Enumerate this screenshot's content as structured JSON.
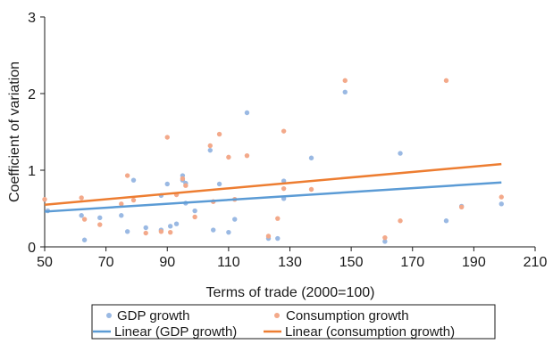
{
  "chart_data": {
    "type": "scatter",
    "xlabel": "Terms of trade (2000=100)",
    "ylabel": "Coefficient of variation",
    "xlim": [
      50,
      210
    ],
    "ylim": [
      0,
      3
    ],
    "x_ticks": [
      50,
      70,
      90,
      110,
      130,
      150,
      170,
      190,
      210
    ],
    "y_ticks": [
      0,
      1,
      2,
      3
    ],
    "grid": false,
    "legend_position": "bottom",
    "series": [
      {
        "name": "GDP growth",
        "kind": "scatter",
        "color": "#9ab9e3",
        "points": [
          [
            51,
            0.47
          ],
          [
            62,
            0.41
          ],
          [
            63,
            0.09
          ],
          [
            68,
            0.38
          ],
          [
            75,
            0.41
          ],
          [
            77,
            0.2
          ],
          [
            79,
            0.87
          ],
          [
            83,
            0.25
          ],
          [
            88,
            0.22
          ],
          [
            88,
            0.67
          ],
          [
            90,
            0.82
          ],
          [
            91,
            0.27
          ],
          [
            93,
            0.3
          ],
          [
            95,
            0.93
          ],
          [
            95,
            0.87
          ],
          [
            96,
            0.83
          ],
          [
            96,
            0.57
          ],
          [
            99,
            0.47
          ],
          [
            104,
            1.26
          ],
          [
            105,
            0.22
          ],
          [
            107,
            0.82
          ],
          [
            110,
            0.19
          ],
          [
            112,
            0.36
          ],
          [
            116,
            1.75
          ],
          [
            123,
            0.11
          ],
          [
            126,
            0.11
          ],
          [
            128,
            0.86
          ],
          [
            128,
            0.63
          ],
          [
            137,
            1.16
          ],
          [
            148,
            2.02
          ],
          [
            161,
            0.07
          ],
          [
            166,
            1.22
          ],
          [
            181,
            0.34
          ],
          [
            186,
            0.53
          ],
          [
            199,
            0.56
          ]
        ]
      },
      {
        "name": "Consumption growth",
        "kind": "scatter",
        "color": "#f3a98a",
        "points": [
          [
            50,
            0.62
          ],
          [
            62,
            0.64
          ],
          [
            63,
            0.36
          ],
          [
            68,
            0.29
          ],
          [
            75,
            0.56
          ],
          [
            77,
            0.93
          ],
          [
            79,
            0.61
          ],
          [
            83,
            0.18
          ],
          [
            88,
            0.2
          ],
          [
            90,
            1.43
          ],
          [
            91,
            0.19
          ],
          [
            93,
            0.68
          ],
          [
            95,
            0.89
          ],
          [
            96,
            0.8
          ],
          [
            99,
            0.39
          ],
          [
            104,
            1.32
          ],
          [
            105,
            0.59
          ],
          [
            107,
            1.47
          ],
          [
            110,
            1.17
          ],
          [
            112,
            0.62
          ],
          [
            116,
            1.19
          ],
          [
            123,
            0.14
          ],
          [
            126,
            0.37
          ],
          [
            128,
            0.76
          ],
          [
            128,
            1.51
          ],
          [
            137,
            0.75
          ],
          [
            148,
            2.17
          ],
          [
            161,
            0.12
          ],
          [
            166,
            0.34
          ],
          [
            181,
            2.17
          ],
          [
            186,
            0.52
          ],
          [
            199,
            0.65
          ]
        ]
      },
      {
        "name": "Linear (GDP growth)",
        "kind": "line",
        "color": "#5b9bd5",
        "points": [
          [
            50,
            0.46
          ],
          [
            199,
            0.84
          ]
        ]
      },
      {
        "name": "Linear (consumption growth)",
        "kind": "line",
        "color": "#ed7d31",
        "points": [
          [
            50,
            0.55
          ],
          [
            199,
            1.08
          ]
        ]
      }
    ]
  }
}
